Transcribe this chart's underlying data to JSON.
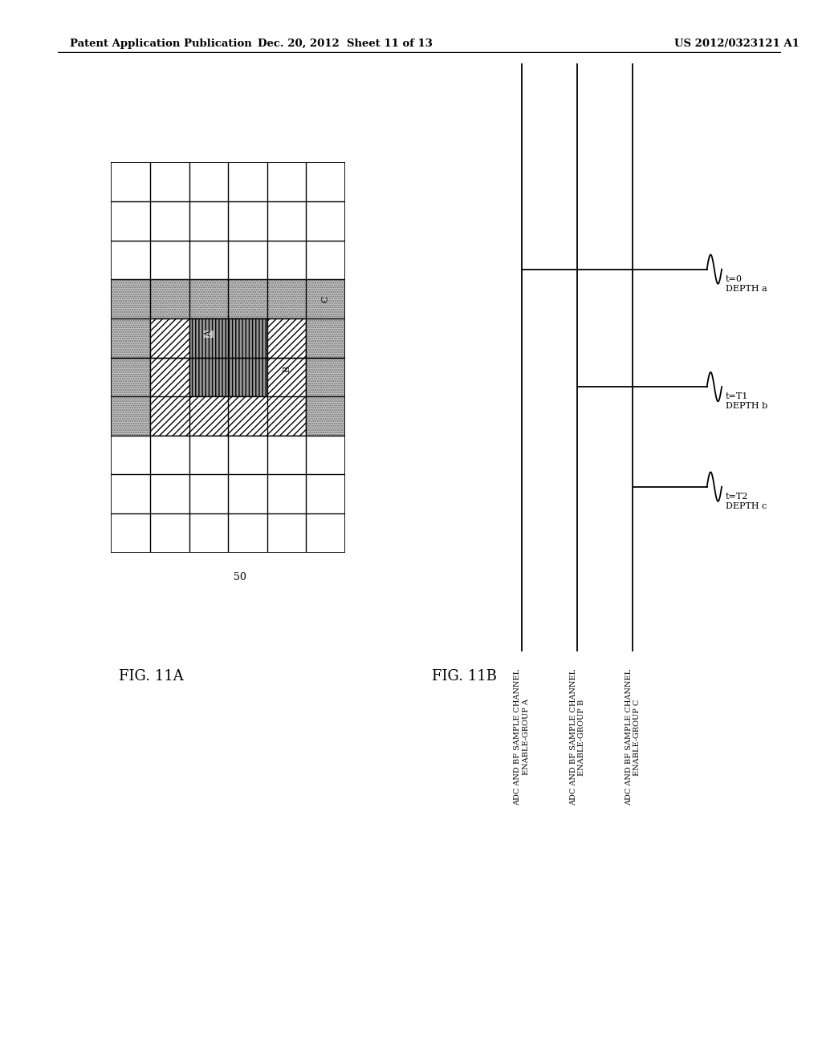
{
  "header_left": "Patent Application Publication",
  "header_mid": "Dec. 20, 2012  Sheet 11 of 13",
  "header_right": "US 2012/0323121 A1",
  "fig11a_label": "FIG. 11A",
  "fig11b_label": "FIG. 11B",
  "label_50": "50",
  "bg_color": "#ffffff",
  "timing_labels": [
    "ADC AND BF SAMPLE CHANNEL\nENABLE-GROUP A",
    "ADC AND BF SAMPLE CHANNEL\nENABLE-GROUP B",
    "ADC AND BF SAMPLE CHANNEL\nENABLE-GROUP C"
  ],
  "timing_depth_labels": [
    "t=0\nDEPTH a",
    "t=T1\nDEPTH b",
    "t=T2\nDEPTH c"
  ]
}
